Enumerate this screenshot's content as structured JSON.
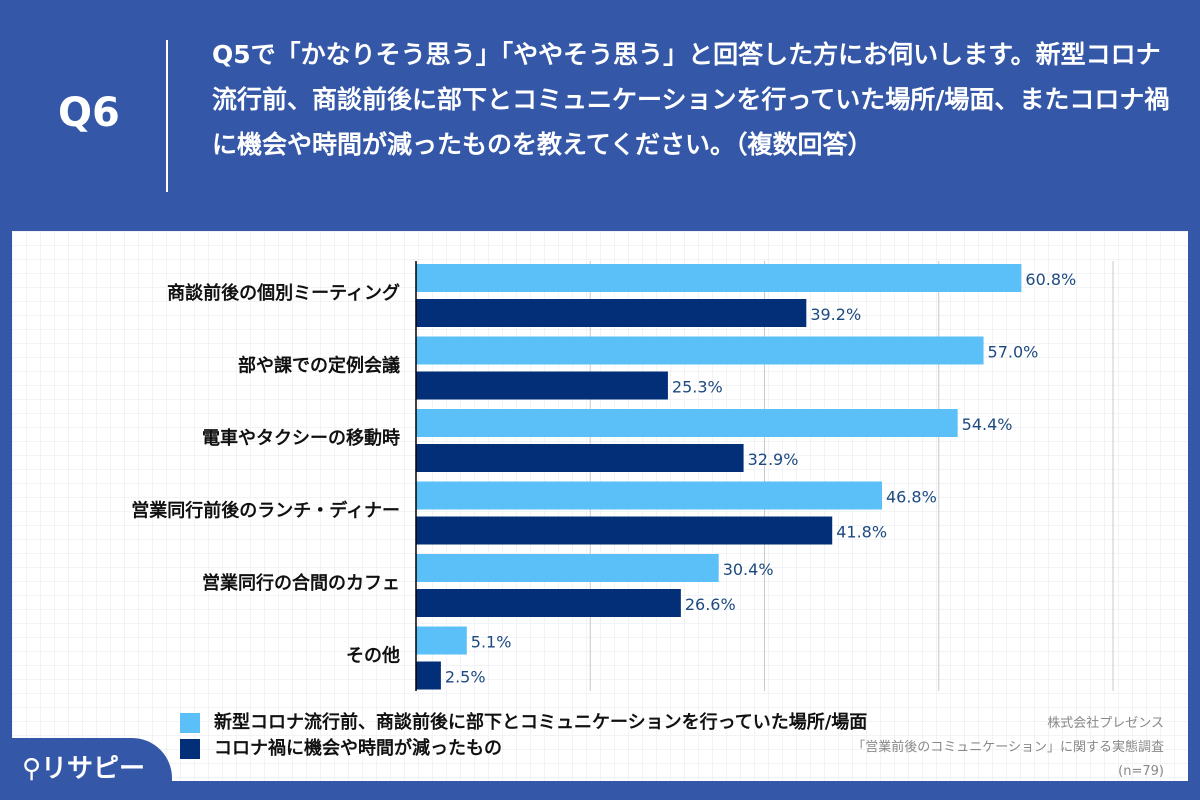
{
  "header": {
    "q_label": "Q6",
    "question": "Q5で「かなりそう思う」「ややそう思う」と回答した方にお伺いします。新型コロナ流行前、商談前後に部下とコミュニケーションを行っていた場所/場面、またコロナ禍に機会や時間が減ったものを教えてください。（複数回答）"
  },
  "chart_data": {
    "type": "bar",
    "orientation": "horizontal",
    "categories": [
      "商談前後の個別ミーティング",
      "部や課での定例会議",
      "電車やタクシーの移動時",
      "営業同行前後のランチ・ディナー",
      "営業同行の合間のカフェ",
      "その他"
    ],
    "series": [
      {
        "name": "新型コロナ流行前、商談前後に部下とコミュニケーションを行っていた場所/場面",
        "color": "#5bc0f8",
        "values": [
          60.8,
          57.0,
          54.4,
          46.8,
          30.4,
          5.1
        ]
      },
      {
        "name": "コロナ禍に機会や時間が減ったもの",
        "color": "#022f78",
        "values": [
          39.2,
          25.3,
          32.9,
          41.8,
          26.6,
          2.5
        ]
      }
    ],
    "xlim": [
      0,
      70
    ],
    "grid": true,
    "legend": "bottom",
    "value_suffix": "%"
  },
  "source": {
    "company": "株式会社プレゼンス",
    "survey": "「営業前後のコミュニケーション」に関する実態調査",
    "n": "(n=79)"
  },
  "logo": "リサピー"
}
